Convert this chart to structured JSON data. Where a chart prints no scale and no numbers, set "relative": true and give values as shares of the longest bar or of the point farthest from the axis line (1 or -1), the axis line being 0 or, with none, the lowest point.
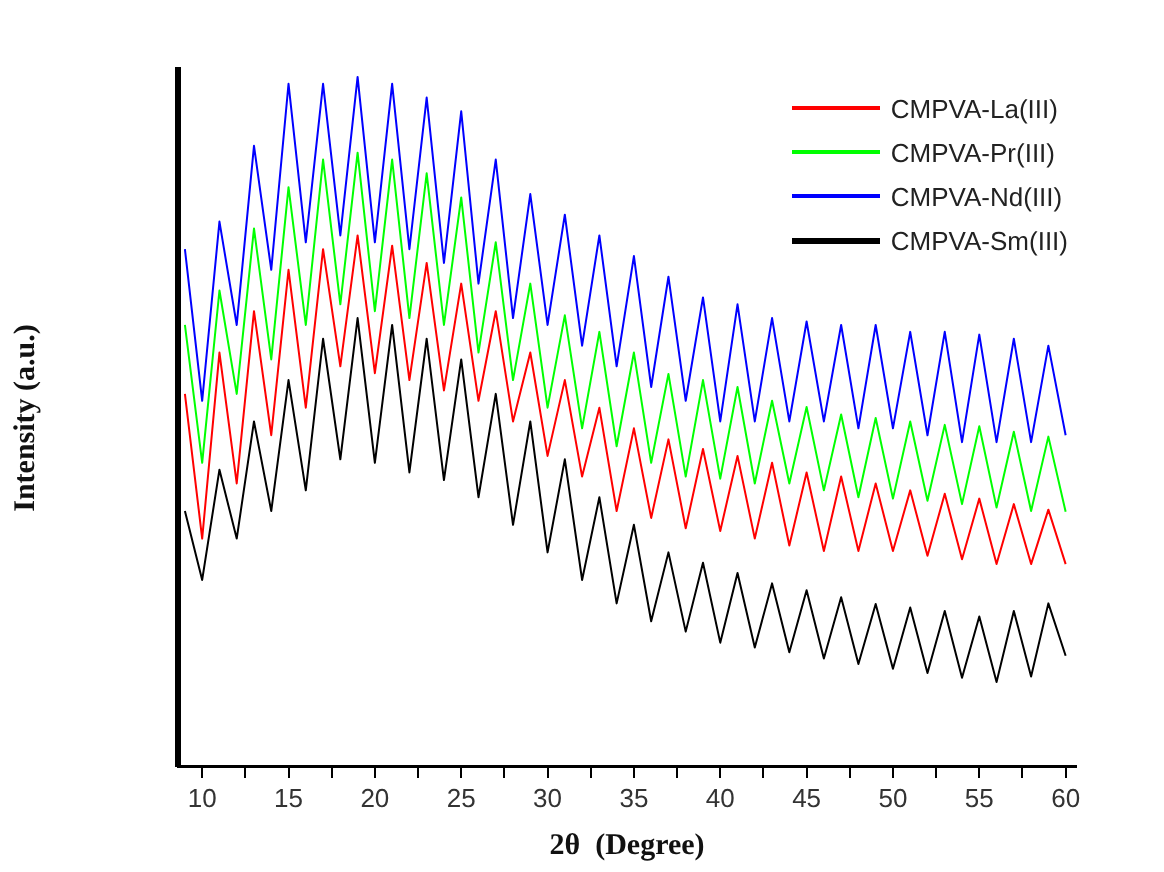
{
  "chart_data": {
    "type": "line",
    "xlabel": "2θ  (Degree)",
    "ylabel": "Intensity (a.u.)",
    "relative": true,
    "legend": "top right",
    "marker": "none",
    "line_style": "solid",
    "grid": false,
    "xlim": [
      8.6,
      60.6
    ],
    "xticks": [
      10,
      {
        "value": 12.5,
        "label": null
      },
      15,
      {
        "value": 17.5,
        "label": null
      },
      20,
      {
        "value": 22.5,
        "label": null
      },
      25,
      {
        "value": 27.5,
        "label": null
      },
      30,
      {
        "value": 32.5,
        "label": null
      },
      35,
      {
        "value": 37.5,
        "label": null
      },
      40,
      {
        "value": 42.5,
        "label": null
      },
      45,
      {
        "value": 47.5,
        "label": null
      },
      50,
      {
        "value": 52.5,
        "label": null
      },
      55,
      {
        "value": 57.5,
        "label": null
      },
      60
    ],
    "x": [
      9,
      10,
      11,
      12,
      13,
      14,
      15,
      16,
      17,
      18,
      19,
      20,
      21,
      22,
      23,
      24,
      25,
      26,
      27,
      28,
      29,
      30,
      31,
      32,
      33,
      34,
      35,
      36,
      37,
      38,
      39,
      40,
      41,
      42,
      43,
      44,
      45,
      46,
      47,
      48,
      49,
      50,
      51,
      52,
      53,
      54,
      55,
      56,
      57,
      58,
      59,
      60
    ],
    "series": [
      {
        "name": "CMPVA-La(III)",
        "color": "#ff0000",
        "values": [
          0.54,
          0.33,
          0.6,
          0.41,
          0.66,
          0.48,
          0.72,
          0.52,
          0.75,
          0.58,
          0.77,
          0.57,
          0.755,
          0.56,
          0.73,
          0.545,
          0.7,
          0.53,
          0.66,
          0.5,
          0.6,
          0.45,
          0.56,
          0.42,
          0.52,
          0.37,
          0.49,
          0.36,
          0.474,
          0.345,
          0.46,
          0.341,
          0.45,
          0.33,
          0.44,
          0.32,
          0.426,
          0.312,
          0.42,
          0.312,
          0.41,
          0.312,
          0.4,
          0.305,
          0.395,
          0.3,
          0.388,
          0.293,
          0.38,
          0.293,
          0.372,
          0.293
        ]
      },
      {
        "name": "CMPVA-Pr(III)",
        "color": "#00ff00",
        "values": [
          0.64,
          0.44,
          0.69,
          0.54,
          0.78,
          0.59,
          0.84,
          0.64,
          0.88,
          0.67,
          0.89,
          0.66,
          0.88,
          0.65,
          0.86,
          0.64,
          0.825,
          0.6,
          0.76,
          0.56,
          0.7,
          0.52,
          0.654,
          0.49,
          0.63,
          0.464,
          0.6,
          0.44,
          0.569,
          0.42,
          0.56,
          0.417,
          0.55,
          0.41,
          0.53,
          0.41,
          0.521,
          0.4,
          0.51,
          0.39,
          0.505,
          0.388,
          0.5,
          0.385,
          0.495,
          0.38,
          0.493,
          0.375,
          0.485,
          0.37,
          0.478,
          0.369
        ]
      },
      {
        "name": "CMPVA-Nd(III)",
        "color": "#0000ff",
        "values": [
          0.75,
          0.53,
          0.79,
          0.64,
          0.9,
          0.72,
          0.99,
          0.76,
          0.99,
          0.77,
          1.0,
          0.76,
          0.99,
          0.75,
          0.97,
          0.73,
          0.95,
          0.7,
          0.88,
          0.65,
          0.83,
          0.64,
          0.8,
          0.61,
          0.77,
          0.58,
          0.74,
          0.55,
          0.71,
          0.53,
          0.68,
          0.5,
          0.67,
          0.5,
          0.65,
          0.5,
          0.645,
          0.5,
          0.64,
          0.49,
          0.64,
          0.49,
          0.63,
          0.48,
          0.63,
          0.47,
          0.626,
          0.47,
          0.62,
          0.47,
          0.61,
          0.48
        ]
      },
      {
        "name": "CMPVA-Sm(III)",
        "color": "#000000",
        "values": [
          0.37,
          0.27,
          0.43,
          0.33,
          0.5,
          0.37,
          0.56,
          0.4,
          0.62,
          0.445,
          0.65,
          0.44,
          0.64,
          0.426,
          0.62,
          0.415,
          0.59,
          0.39,
          0.54,
          0.35,
          0.5,
          0.31,
          0.445,
          0.27,
          0.39,
          0.236,
          0.35,
          0.21,
          0.31,
          0.195,
          0.295,
          0.179,
          0.28,
          0.172,
          0.265,
          0.165,
          0.255,
          0.156,
          0.245,
          0.148,
          0.235,
          0.141,
          0.23,
          0.135,
          0.225,
          0.128,
          0.217,
          0.122,
          0.225,
          0.13,
          0.236,
          0.16
        ]
      }
    ]
  }
}
